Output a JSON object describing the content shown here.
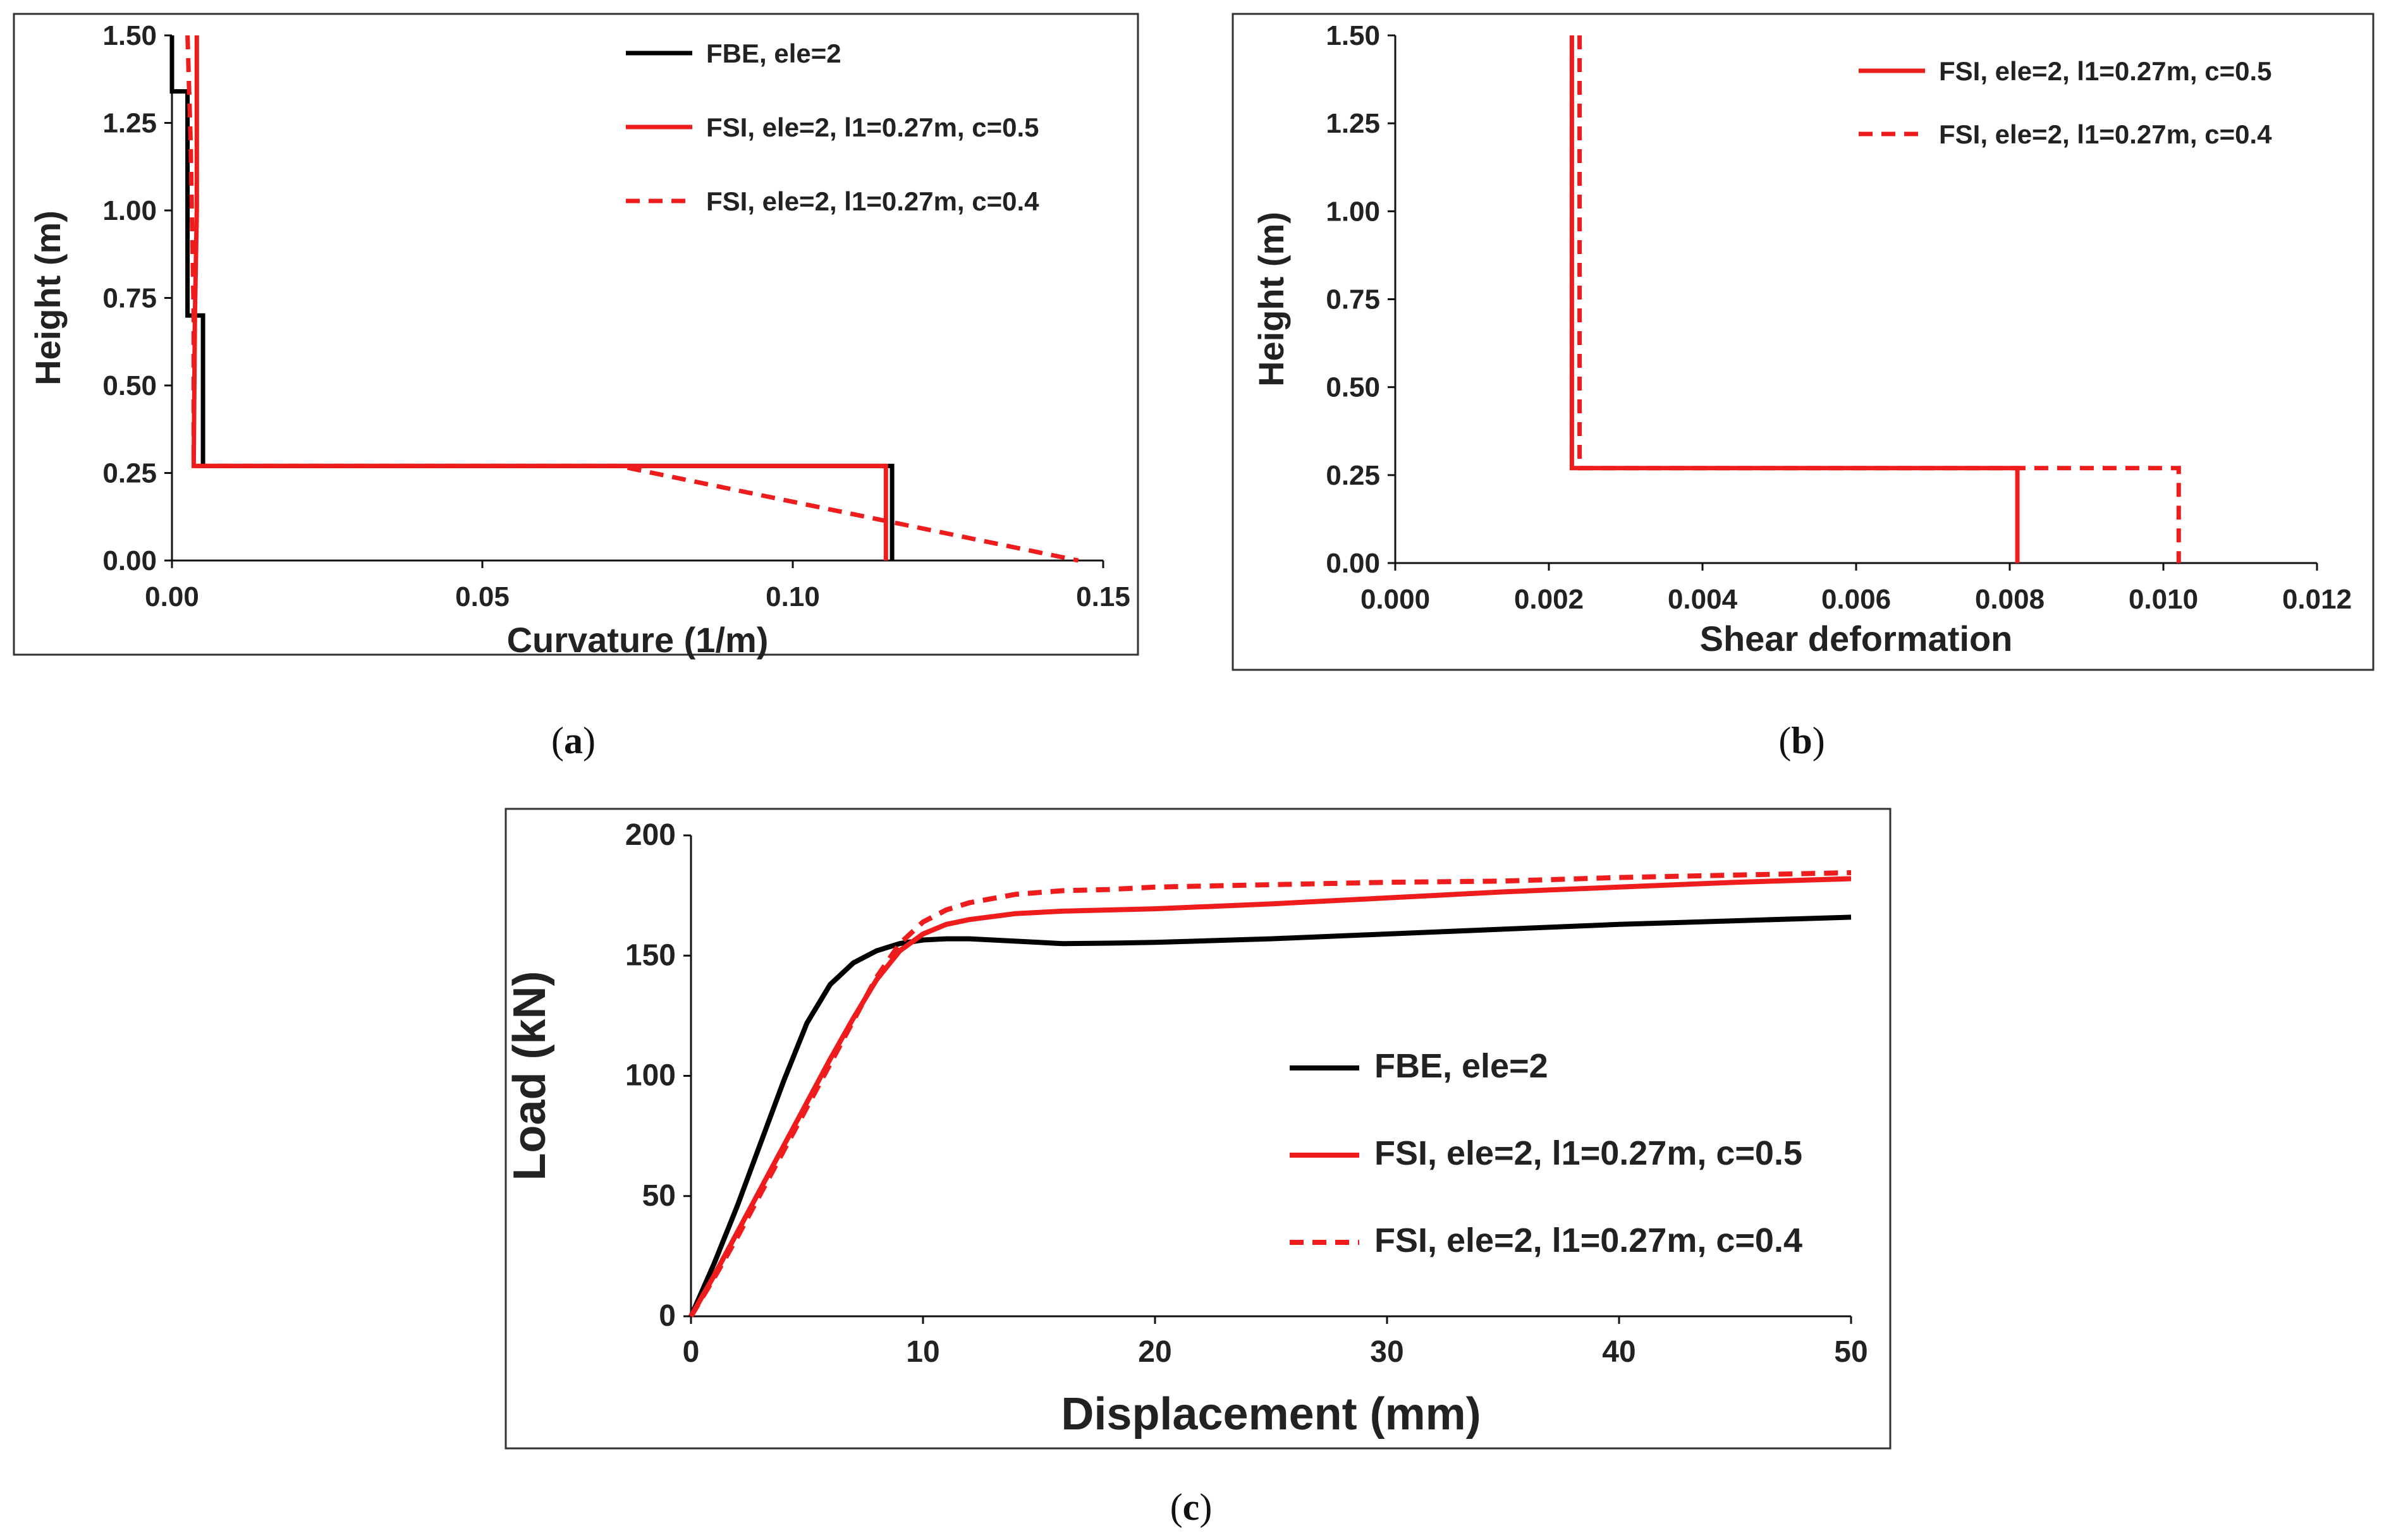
{
  "chart_data": [
    {
      "id": "a",
      "type": "line",
      "caption_letter": "a",
      "xlabel": "Curvature (1/m)",
      "ylabel": "Height (m)",
      "xlim": [
        0,
        0.15
      ],
      "ylim": [
        0,
        1.5
      ],
      "xticks": [
        "0.00",
        "0.05",
        "0.10",
        "0.15"
      ],
      "yticks": [
        "0.00",
        "0.25",
        "0.50",
        "0.75",
        "1.00",
        "1.25",
        "1.50"
      ],
      "legend": "top-right",
      "series": [
        {
          "name": "FBE, ele=2",
          "color": "#000000",
          "dash": "solid",
          "x": [
            0.0,
            0.0,
            0.0025,
            0.0025,
            0.003,
            0.003,
            0.005,
            0.005,
            0.116,
            0.116
          ],
          "y": [
            1.5,
            1.34,
            1.34,
            0.7,
            0.7,
            0.7,
            0.7,
            0.27,
            0.27,
            0.0
          ]
        },
        {
          "name": "FSI, ele=2, l1=0.27m, c=0.5",
          "color": "#ee1c1c",
          "dash": "solid",
          "x": [
            0.004,
            0.004,
            0.0037,
            0.0035,
            0.115,
            0.115
          ],
          "y": [
            1.5,
            1.0,
            0.7,
            0.27,
            0.27,
            0.0
          ]
        },
        {
          "name": "FSI, ele=2, l1=0.27m, c=0.4",
          "color": "#ee1c1c",
          "dash": "dashed",
          "x": [
            0.0025,
            0.003,
            0.0035,
            0.0035,
            0.072,
            0.146
          ],
          "y": [
            1.5,
            1.2,
            0.7,
            0.27,
            0.27,
            0.0
          ]
        }
      ]
    },
    {
      "id": "b",
      "type": "line",
      "caption_letter": "b",
      "xlabel": "Shear deformation",
      "ylabel": "Height (m)",
      "xlim": [
        0,
        0.012
      ],
      "ylim": [
        0,
        1.5
      ],
      "xticks": [
        "0.000",
        "0.002",
        "0.004",
        "0.006",
        "0.008",
        "0.010",
        "0.012"
      ],
      "yticks": [
        "0.00",
        "0.25",
        "0.50",
        "0.75",
        "1.00",
        "1.25",
        "1.50"
      ],
      "legend": "top-right",
      "series": [
        {
          "name": "FSI, ele=2, l1=0.27m, c=0.5",
          "color": "#ee1c1c",
          "dash": "solid",
          "x": [
            0.0023,
            0.0023,
            0.0081,
            0.0081
          ],
          "y": [
            1.5,
            0.27,
            0.27,
            0.0
          ]
        },
        {
          "name": "FSI, ele=2, l1=0.27m, c=0.4",
          "color": "#ee1c1c",
          "dash": "dashed",
          "x": [
            0.0024,
            0.0024,
            0.0102,
            0.0102
          ],
          "y": [
            1.5,
            0.27,
            0.27,
            0.0
          ]
        }
      ]
    },
    {
      "id": "c",
      "type": "line",
      "caption_letter": "c",
      "xlabel": "Displacement (mm)",
      "ylabel": "Load (kN)",
      "xlim": [
        0,
        50
      ],
      "ylim": [
        0,
        200
      ],
      "xticks": [
        "0",
        "10",
        "20",
        "30",
        "40",
        "50"
      ],
      "yticks": [
        "0",
        "50",
        "100",
        "150",
        "200"
      ],
      "legend": "center-right",
      "series": [
        {
          "name": "FBE, ele=2",
          "color": "#000000",
          "dash": "solid",
          "x": [
            0,
            1,
            2,
            3,
            4,
            5,
            6,
            7,
            8,
            9,
            10,
            11,
            12,
            13,
            14,
            15,
            16,
            18,
            20,
            25,
            30,
            35,
            40,
            45,
            50
          ],
          "y": [
            0,
            22,
            46,
            72,
            98,
            122,
            138,
            147,
            152,
            155,
            156.5,
            157,
            157,
            156.5,
            156,
            155.5,
            155,
            155.2,
            155.5,
            157,
            159,
            161,
            163,
            164.5,
            166
          ]
        },
        {
          "name": "FSI, ele=2, l1=0.27m, c=0.5",
          "color": "#ee1c1c",
          "dash": "solid",
          "x": [
            0,
            1,
            2,
            3,
            4,
            5,
            6,
            7,
            8,
            9,
            10,
            11,
            12,
            14,
            16,
            18,
            20,
            25,
            30,
            35,
            40,
            45,
            50
          ],
          "y": [
            0,
            17,
            35,
            53,
            71,
            89,
            107,
            124,
            140,
            152,
            159,
            163,
            165,
            167.5,
            168.5,
            169,
            169.5,
            171.5,
            174,
            176.5,
            178.5,
            180.5,
            182
          ]
        },
        {
          "name": "FSI, ele=2, l1=0.27m, c=0.4",
          "color": "#ee1c1c",
          "dash": "dashed",
          "x": [
            0,
            1,
            2,
            3,
            4,
            5,
            6,
            7,
            8,
            9,
            10,
            11,
            12,
            14,
            16,
            18,
            20,
            25,
            30,
            35,
            40,
            45,
            50
          ],
          "y": [
            0,
            16,
            33,
            51,
            69,
            87,
            105,
            123,
            141,
            155,
            164,
            169,
            172,
            175.5,
            177,
            177.5,
            178.5,
            179.5,
            180.5,
            181,
            182.5,
            183.5,
            184.5
          ]
        }
      ]
    }
  ]
}
